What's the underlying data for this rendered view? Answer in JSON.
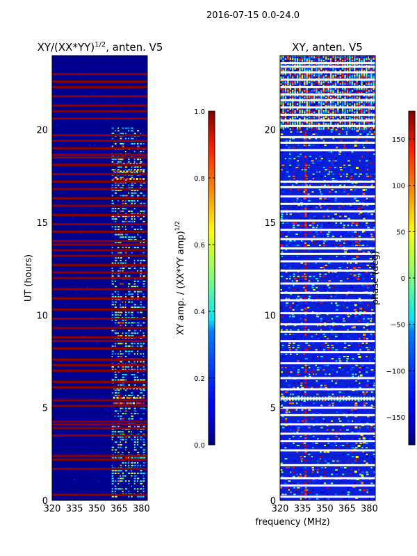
{
  "chart_data": [
    {
      "type": "heatmap",
      "suptitle": "2016-07-15 0.0-24.0",
      "title_main": "XY/(XX*YY)",
      "title_sup": "1/2",
      "title_tail": ", anten. V5",
      "xlabel": "",
      "ylabel": "UT (hours)",
      "xlim": [
        320,
        384
      ],
      "ylim": [
        0,
        24
      ],
      "xticks": [
        320,
        335,
        350,
        365,
        380
      ],
      "yticks": [
        0,
        5,
        10,
        15,
        20
      ],
      "colorbar": {
        "label_main": "XY amp. / (XX*YY amp)",
        "label_sup": "1/2",
        "range": [
          0.0,
          1.0
        ],
        "ticks": [
          "0.0",
          "0.2",
          "0.4",
          "0.6",
          "0.8",
          "1.0"
        ],
        "tick_values": [
          0.0,
          0.2,
          0.4,
          0.6,
          0.8,
          1.0
        ],
        "colormap": "jet"
      },
      "flagged_hours": [
        0.3,
        1.7,
        2.2,
        2.4,
        3.5,
        3.9,
        4.1,
        4.25,
        5.1,
        5.4,
        6.1,
        6.4,
        7.0,
        7.3,
        7.6,
        8.2,
        8.6,
        8.8,
        9.3,
        9.8,
        10.3,
        10.9,
        11.4,
        12.0,
        12.3,
        12.7,
        13.2,
        13.5,
        13.8,
        14.0,
        14.5,
        14.9,
        15.4,
        15.9,
        16.3,
        16.8,
        17.2,
        17.6,
        18.1,
        18.5,
        18.65,
        19.0,
        19.4,
        19.7,
        20.6,
        21.0,
        21.3,
        21.8,
        22.3,
        22.6,
        23.0
      ]
    },
    {
      "type": "heatmap",
      "title": "XY, anten. V5",
      "xlabel": "frequency (MHz)",
      "ylabel": "",
      "xlim": [
        320,
        384
      ],
      "ylim": [
        0,
        24
      ],
      "xticks": [
        320,
        335,
        350,
        365,
        380
      ],
      "yticks": [
        0,
        5,
        10,
        15,
        20
      ],
      "colorbar": {
        "label": "phase (deg)",
        "range": [
          -180,
          180
        ],
        "ticks": [
          "150",
          "100",
          "50",
          "0",
          "−50",
          "−100",
          "−150"
        ],
        "tick_values": [
          150,
          100,
          50,
          0,
          -50,
          -100,
          -150
        ],
        "colormap": "jet"
      },
      "flagged_hours": [
        0.2,
        0.8,
        1.2,
        1.9,
        2.7,
        3.2,
        3.6,
        4.1,
        4.6,
        5.0,
        5.5,
        6.0,
        6.6,
        7.4,
        8.0,
        8.6,
        9.1,
        9.5,
        10.1,
        10.8,
        11.2,
        11.7,
        12.4,
        12.9,
        13.3,
        13.6,
        14.1,
        14.6,
        15.1,
        15.6,
        16.0,
        16.4,
        16.9,
        17.2,
        18.9,
        19.3,
        19.6,
        20.2,
        20.5,
        20.8,
        21.2,
        21.6,
        21.9,
        22.3,
        22.7,
        23.1,
        23.4,
        23.6
      ]
    }
  ]
}
